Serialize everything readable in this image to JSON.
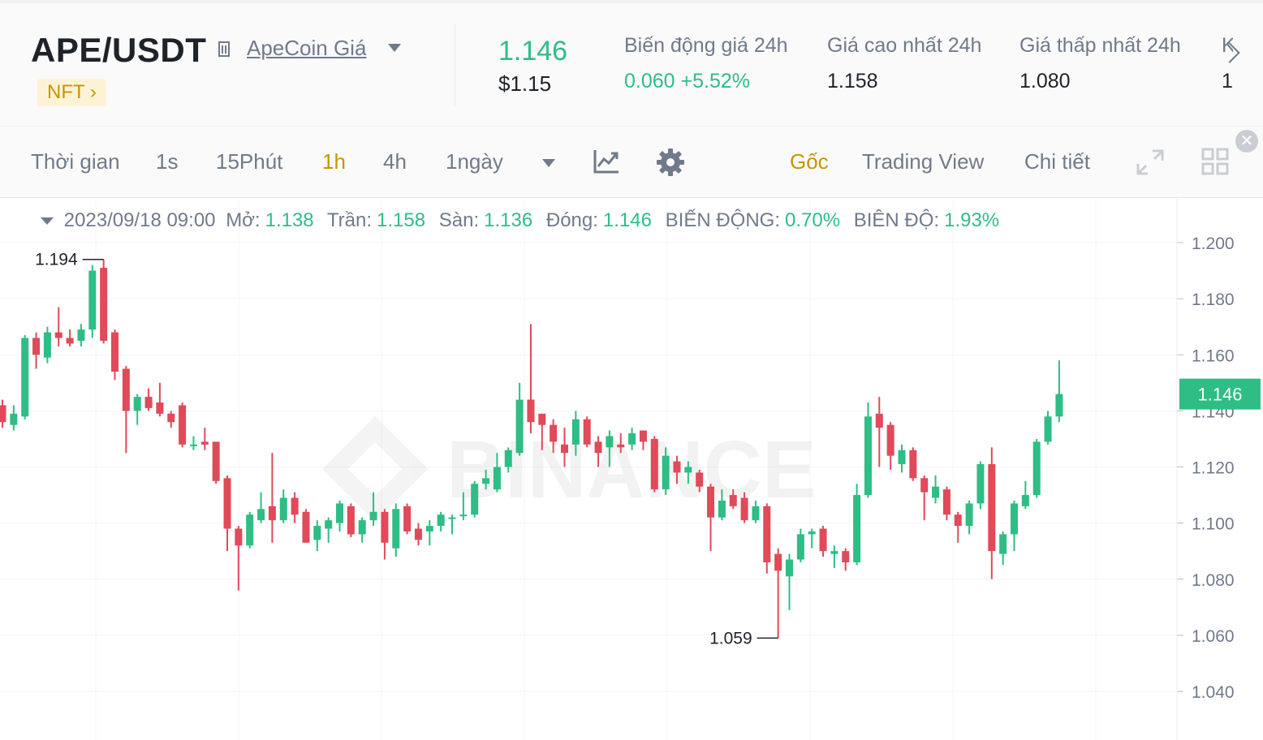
{
  "header": {
    "pair": "APE/USDT",
    "coin_link": "ApeCoin Giá",
    "nft_badge": "NFT ›",
    "last_price": "1.146",
    "last_price_usd": "$1.15",
    "stats": [
      {
        "label": "Biến động giá 24h",
        "value": "0.060 +5.52%",
        "color": "green"
      },
      {
        "label": "Giá cao nhất 24h",
        "value": "1.158",
        "color": "default"
      },
      {
        "label": "Giá thấp nhất 24h",
        "value": "1.080",
        "color": "default"
      },
      {
        "label": "K",
        "value": "1",
        "color": "default"
      }
    ]
  },
  "toolbar": {
    "time_label": "Thời gian",
    "intervals": [
      "1s",
      "15Phút",
      "1h",
      "4h",
      "1ngày"
    ],
    "active_interval": "1h",
    "views": [
      "Gốc",
      "Trading View",
      "Chi tiết"
    ],
    "active_view": "Gốc"
  },
  "ohlc": {
    "date": "2023/09/18 09:00",
    "open_label": "Mở:",
    "open": "1.138",
    "high_label": "Trần:",
    "high": "1.158",
    "low_label": "Sàn:",
    "low": "1.136",
    "close_label": "Đóng:",
    "close": "1.146",
    "change_label": "BIẾN ĐỘNG:",
    "change": "0.70%",
    "amp_label": "BIÊN ĐỘ:",
    "amp": "1.93%"
  },
  "colors": {
    "up": "#2ebd85",
    "down": "#e04a59",
    "accent": "#c99400"
  },
  "chart_data": {
    "type": "candlestick",
    "ylim": [
      1.03,
      1.21
    ],
    "yticks": [
      "1.200",
      "1.180",
      "1.160",
      "1.140",
      "1.120",
      "1.100",
      "1.080",
      "1.060",
      "1.040"
    ],
    "last_price_label": "1.146",
    "max_label": "1.194",
    "min_label": "1.059",
    "watermark": "BINANCE",
    "candles": [
      [
        1.142,
        1.136,
        1.144,
        1.134
      ],
      [
        1.135,
        1.139,
        1.142,
        1.133
      ],
      [
        1.138,
        1.166,
        1.167,
        1.137
      ],
      [
        1.166,
        1.16,
        1.168,
        1.155
      ],
      [
        1.159,
        1.168,
        1.17,
        1.157
      ],
      [
        1.168,
        1.166,
        1.177,
        1.163
      ],
      [
        1.166,
        1.164,
        1.169,
        1.163
      ],
      [
        1.165,
        1.169,
        1.171,
        1.163
      ],
      [
        1.169,
        1.19,
        1.192,
        1.166
      ],
      [
        1.191,
        1.165,
        1.194,
        1.164
      ],
      [
        1.168,
        1.154,
        1.169,
        1.151
      ],
      [
        1.155,
        1.14,
        1.156,
        1.125
      ],
      [
        1.14,
        1.145,
        1.146,
        1.135
      ],
      [
        1.145,
        1.141,
        1.148,
        1.14
      ],
      [
        1.143,
        1.139,
        1.15,
        1.138
      ],
      [
        1.139,
        1.136,
        1.14,
        1.134
      ],
      [
        1.142,
        1.128,
        1.143,
        1.127
      ],
      [
        1.128,
        1.128,
        1.131,
        1.126
      ],
      [
        1.129,
        1.128,
        1.134,
        1.126
      ],
      [
        1.129,
        1.115,
        1.129,
        1.114
      ],
      [
        1.116,
        1.098,
        1.117,
        1.09
      ],
      [
        1.098,
        1.092,
        1.099,
        1.076
      ],
      [
        1.092,
        1.103,
        1.104,
        1.091
      ],
      [
        1.101,
        1.105,
        1.111,
        1.1
      ],
      [
        1.106,
        1.101,
        1.125,
        1.093
      ],
      [
        1.101,
        1.109,
        1.112,
        1.1
      ],
      [
        1.109,
        1.103,
        1.111,
        1.1
      ],
      [
        1.104,
        1.093,
        1.105,
        1.093
      ],
      [
        1.094,
        1.099,
        1.101,
        1.09
      ],
      [
        1.098,
        1.101,
        1.102,
        1.093
      ],
      [
        1.1,
        1.107,
        1.108,
        1.097
      ],
      [
        1.106,
        1.096,
        1.107,
        1.095
      ],
      [
        1.096,
        1.101,
        1.102,
        1.093
      ],
      [
        1.101,
        1.104,
        1.111,
        1.099
      ],
      [
        1.104,
        1.093,
        1.105,
        1.087
      ],
      [
        1.091,
        1.105,
        1.107,
        1.088
      ],
      [
        1.106,
        1.097,
        1.107,
        1.096
      ],
      [
        1.098,
        1.094,
        1.1,
        1.092
      ],
      [
        1.097,
        1.099,
        1.101,
        1.092
      ],
      [
        1.099,
        1.103,
        1.104,
        1.097
      ],
      [
        1.102,
        1.102,
        1.103,
        1.096
      ],
      [
        1.103,
        1.103,
        1.111,
        1.101
      ],
      [
        1.103,
        1.114,
        1.115,
        1.102
      ],
      [
        1.114,
        1.116,
        1.119,
        1.112
      ],
      [
        1.112,
        1.12,
        1.125,
        1.111
      ],
      [
        1.12,
        1.126,
        1.127,
        1.118
      ],
      [
        1.125,
        1.144,
        1.15,
        1.124
      ],
      [
        1.144,
        1.136,
        1.171,
        1.132
      ],
      [
        1.139,
        1.135,
        1.139,
        1.126
      ],
      [
        1.135,
        1.129,
        1.137,
        1.125
      ],
      [
        1.128,
        1.125,
        1.134,
        1.12
      ],
      [
        1.128,
        1.137,
        1.14,
        1.124
      ],
      [
        1.137,
        1.128,
        1.138,
        1.127
      ],
      [
        1.129,
        1.125,
        1.131,
        1.12
      ],
      [
        1.127,
        1.131,
        1.133,
        1.12
      ],
      [
        1.128,
        1.127,
        1.132,
        1.125
      ],
      [
        1.128,
        1.132,
        1.134,
        1.126
      ],
      [
        1.133,
        1.129,
        1.133,
        1.126
      ],
      [
        1.13,
        1.112,
        1.131,
        1.111
      ],
      [
        1.112,
        1.124,
        1.127,
        1.11
      ],
      [
        1.122,
        1.118,
        1.124,
        1.114
      ],
      [
        1.118,
        1.12,
        1.122,
        1.114
      ],
      [
        1.118,
        1.113,
        1.119,
        1.111
      ],
      [
        1.113,
        1.102,
        1.114,
        1.09
      ],
      [
        1.102,
        1.108,
        1.112,
        1.101
      ],
      [
        1.11,
        1.106,
        1.112,
        1.105
      ],
      [
        1.109,
        1.101,
        1.111,
        1.1
      ],
      [
        1.101,
        1.106,
        1.108,
        1.1
      ],
      [
        1.106,
        1.086,
        1.107,
        1.082
      ],
      [
        1.089,
        1.083,
        1.091,
        1.059
      ],
      [
        1.081,
        1.087,
        1.089,
        1.069
      ],
      [
        1.087,
        1.096,
        1.098,
        1.086
      ],
      [
        1.096,
        1.097,
        1.098,
        1.091
      ],
      [
        1.098,
        1.09,
        1.099,
        1.088
      ],
      [
        1.089,
        1.09,
        1.092,
        1.084
      ],
      [
        1.09,
        1.086,
        1.091,
        1.083
      ],
      [
        1.086,
        1.11,
        1.114,
        1.085
      ],
      [
        1.11,
        1.138,
        1.143,
        1.109
      ],
      [
        1.139,
        1.134,
        1.145,
        1.12
      ],
      [
        1.135,
        1.124,
        1.136,
        1.119
      ],
      [
        1.121,
        1.126,
        1.128,
        1.118
      ],
      [
        1.126,
        1.116,
        1.127,
        1.115
      ],
      [
        1.116,
        1.111,
        1.117,
        1.101
      ],
      [
        1.109,
        1.113,
        1.117,
        1.107
      ],
      [
        1.112,
        1.103,
        1.113,
        1.101
      ],
      [
        1.103,
        1.099,
        1.104,
        1.093
      ],
      [
        1.099,
        1.107,
        1.108,
        1.096
      ],
      [
        1.107,
        1.121,
        1.122,
        1.105
      ],
      [
        1.121,
        1.09,
        1.127,
        1.08
      ],
      [
        1.089,
        1.096,
        1.097,
        1.085
      ],
      [
        1.096,
        1.107,
        1.108,
        1.09
      ],
      [
        1.106,
        1.11,
        1.115,
        1.105
      ],
      [
        1.11,
        1.129,
        1.13,
        1.109
      ],
      [
        1.129,
        1.138,
        1.14,
        1.128
      ],
      [
        1.138,
        1.146,
        1.158,
        1.136
      ]
    ]
  }
}
